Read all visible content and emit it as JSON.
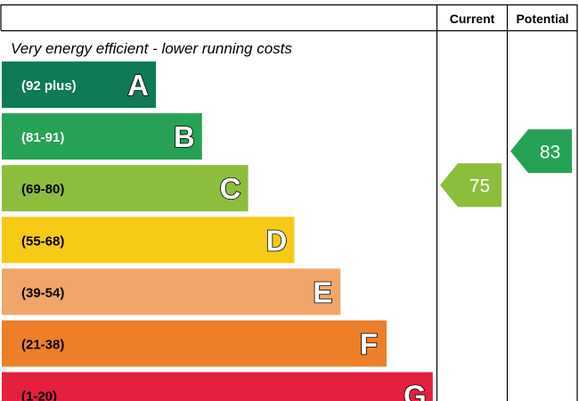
{
  "chart_data": {
    "type": "bar",
    "headers": {
      "current": "Current",
      "potential": "Potential"
    },
    "top_text": "Very energy efficient - lower running costs",
    "bands": [
      {
        "range": "(92 plus)",
        "letter": "A",
        "color": "#0f7a55",
        "text_color": "#ffffff"
      },
      {
        "range": "(81-91)",
        "letter": "B",
        "color": "#26a256",
        "text_color": "#ffffff"
      },
      {
        "range": "(69-80)",
        "letter": "C",
        "color": "#8dbd3d",
        "text_color": "#000000"
      },
      {
        "range": "(55-68)",
        "letter": "D",
        "color": "#f5cb17",
        "text_color": "#000000"
      },
      {
        "range": "(39-54)",
        "letter": "E",
        "color": "#f0a668",
        "text_color": "#000000"
      },
      {
        "range": "(21-38)",
        "letter": "F",
        "color": "#ec7f28",
        "text_color": "#000000"
      },
      {
        "range": "(1-20)",
        "letter": "G",
        "color": "#e3203e",
        "text_color": "#000000"
      }
    ],
    "current": {
      "value": 75,
      "band": "C",
      "color": "#8dbd3d"
    },
    "potential": {
      "value": 83,
      "band": "B",
      "color": "#26a256"
    }
  }
}
